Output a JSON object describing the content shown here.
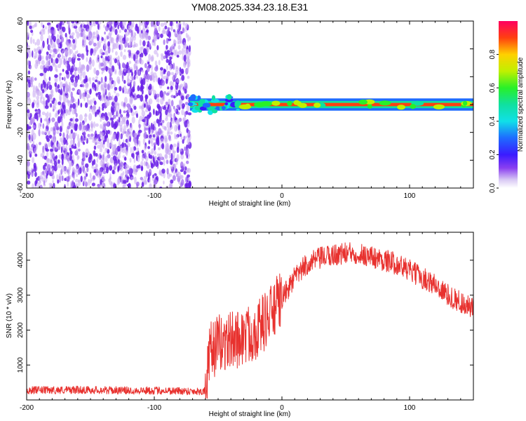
{
  "title": "YM08.2025.334.23.18.E31",
  "chart_data": [
    {
      "type": "heatmap",
      "name": "spectrogram",
      "xlabel": "Height of straight line (km)",
      "ylabel": "Frequency (Hz)",
      "xlim": [
        -200,
        150
      ],
      "ylim": [
        -60,
        60
      ],
      "xticks": [
        -200,
        -100,
        0,
        100
      ],
      "yticks": [
        -60,
        -40,
        -20,
        0,
        20,
        40,
        60
      ],
      "colorbar": {
        "label": "Normalized spectral amplitude",
        "range": [
          0,
          1
        ],
        "ticks": [
          0.0,
          0.2,
          0.4,
          0.6,
          0.8
        ]
      },
      "regions": [
        {
          "description": "broadband noise",
          "x_range": [
            -200,
            -72
          ],
          "freq_range": [
            -60,
            60
          ],
          "amplitude": 0.05
        },
        {
          "description": "narrow signal band",
          "x_range": [
            -72,
            150
          ],
          "freq_center": 0,
          "freq_halfwidth": 2,
          "amplitude_peak": 0.9
        }
      ]
    },
    {
      "type": "line",
      "name": "snr",
      "xlabel": "Height of straight line (km)",
      "ylabel": "SNR (10 * v/v)",
      "xlim": [
        -200,
        150
      ],
      "ylim": [
        0,
        4800
      ],
      "xticks": [
        -200,
        -100,
        0,
        100
      ],
      "yticks": [
        1000,
        2000,
        3000,
        4000
      ],
      "color": "#e8322f",
      "series": [
        {
          "name": "SNR envelope",
          "x": [
            -200,
            -180,
            -160,
            -140,
            -120,
            -100,
            -80,
            -70,
            -60,
            -56,
            -50,
            -40,
            -30,
            -20,
            -10,
            0,
            10,
            20,
            30,
            40,
            50,
            60,
            70,
            80,
            90,
            100,
            110,
            120,
            130,
            140,
            150
          ],
          "y": [
            280,
            280,
            290,
            280,
            270,
            270,
            260,
            250,
            250,
            1400,
            1600,
            1700,
            1800,
            2000,
            2400,
            2900,
            3500,
            3900,
            4050,
            4150,
            4200,
            4200,
            4100,
            4000,
            3900,
            3700,
            3500,
            3300,
            3000,
            2800,
            2600
          ]
        }
      ]
    }
  ]
}
